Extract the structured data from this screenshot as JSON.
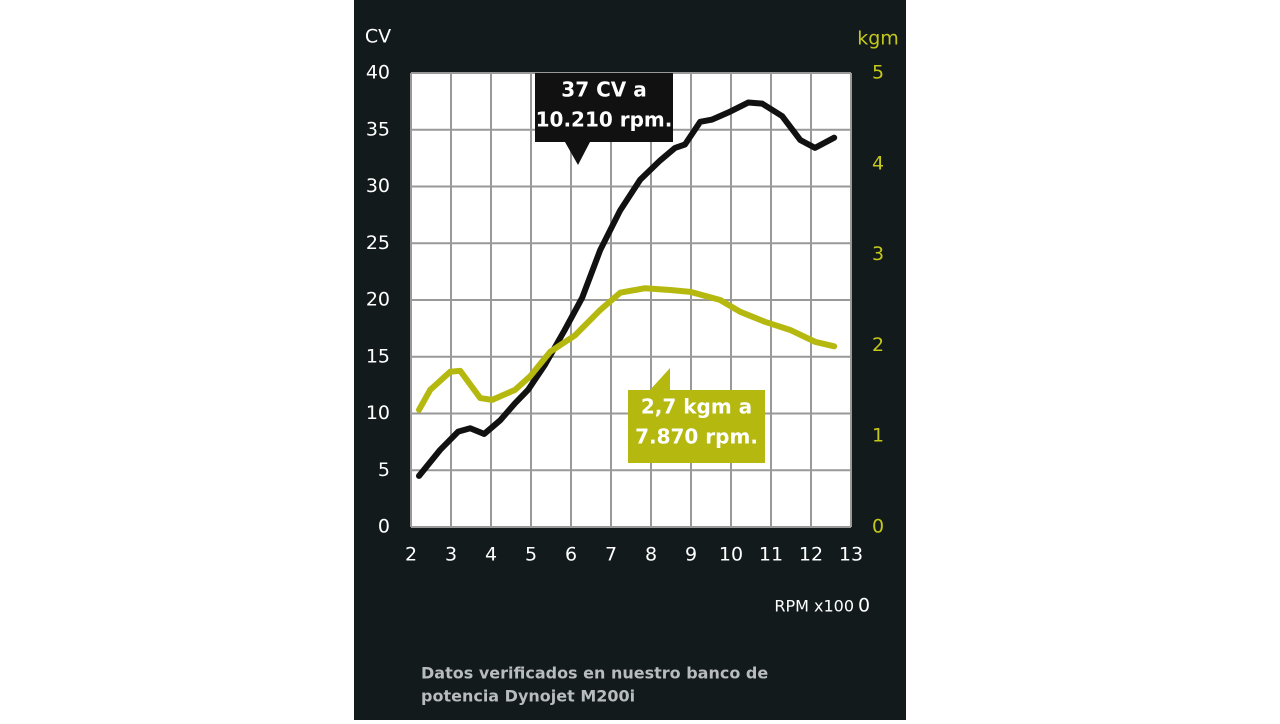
{
  "chart_data": {
    "type": "line",
    "ylabel": "CV",
    "y2label": "kgm",
    "xlabel": "RPM x100",
    "xlabel_extra": "0",
    "note": [
      "Datos verificados en nuestro banco de",
      "potencia Dynojet M200i"
    ],
    "xlim": [
      2,
      13
    ],
    "xticks": [
      2,
      3,
      4,
      5,
      6,
      7,
      8,
      9,
      10,
      11,
      12,
      13
    ],
    "ylim": [
      0,
      40
    ],
    "yticks": [
      0,
      5,
      10,
      15,
      20,
      25,
      30,
      35,
      40
    ],
    "y2lim": [
      0,
      5
    ],
    "y2ticks": [
      0,
      1,
      2,
      3,
      4,
      5
    ],
    "grid": true,
    "series": [
      {
        "name": "CV",
        "color": "#111111",
        "x": [
          2.2,
          2.73,
          3.18,
          3.48,
          3.83,
          4.23,
          4.6,
          4.93,
          5.35,
          5.85,
          6.28,
          6.73,
          7.23,
          7.73,
          8.23,
          8.6,
          8.85,
          9.23,
          9.53,
          9.98,
          10.43,
          10.78,
          11.28,
          11.73,
          12.1,
          12.58
        ],
        "values": [
          4.5,
          6.8,
          8.4,
          8.7,
          8.2,
          9.4,
          10.9,
          12.1,
          14.3,
          17.4,
          20.2,
          24.4,
          27.9,
          30.6,
          32.3,
          33.4,
          33.7,
          35.7,
          35.9,
          36.6,
          37.4,
          37.3,
          36.2,
          34.1,
          33.4,
          34.3
        ]
      },
      {
        "name": "kgm",
        "color": "#b5b90f",
        "axis": "y2",
        "x": [
          2.2,
          2.48,
          2.98,
          3.23,
          3.73,
          4.03,
          4.6,
          4.98,
          5.48,
          6.1,
          6.73,
          7.23,
          7.85,
          8.48,
          8.98,
          9.73,
          10.23,
          10.85,
          11.48,
          12.1,
          12.58
        ],
        "values": [
          1.29,
          1.51,
          1.71,
          1.72,
          1.42,
          1.4,
          1.51,
          1.66,
          1.93,
          2.11,
          2.39,
          2.58,
          2.63,
          2.61,
          2.59,
          2.5,
          2.37,
          2.26,
          2.17,
          2.04,
          1.99
        ]
      }
    ],
    "annotations": [
      {
        "lines": [
          "37 CV a",
          "10.210 rpm."
        ],
        "color": "#111111"
      },
      {
        "lines": [
          "2,7 kgm a",
          "7.870 rpm."
        ],
        "color": "#b5b90f"
      }
    ]
  }
}
